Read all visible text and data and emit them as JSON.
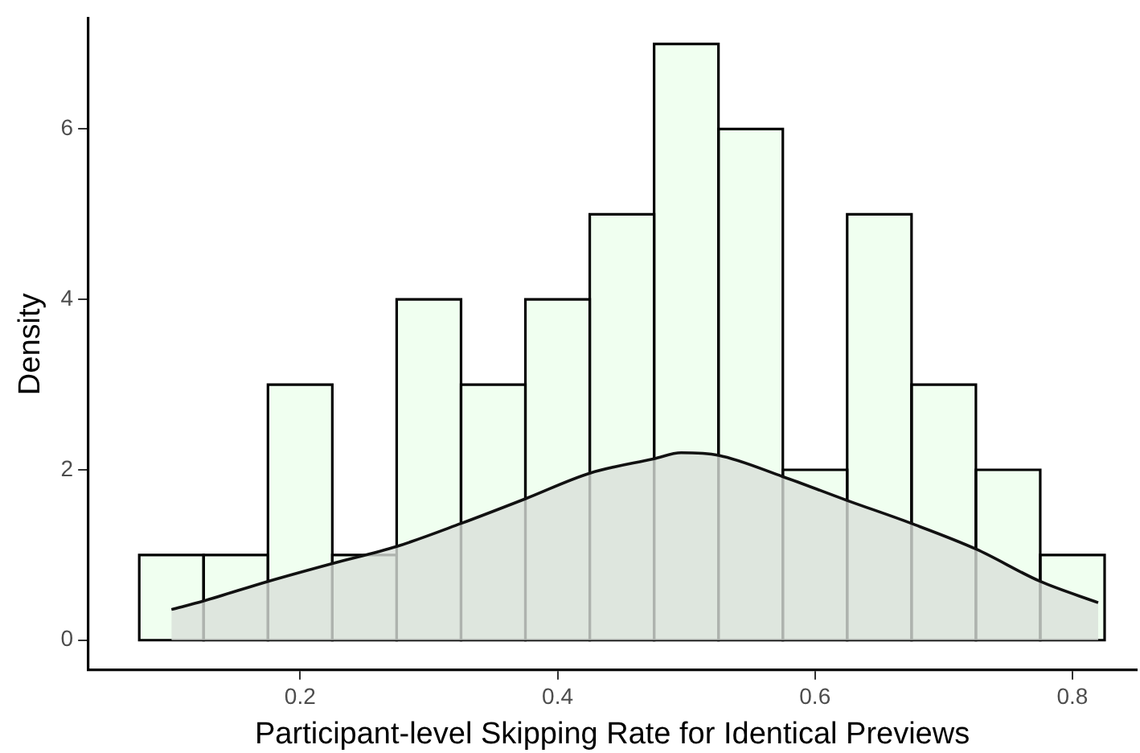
{
  "chart_data": {
    "type": "histogram",
    "xlabel": "Participant-level Skipping Rate for Identical Previews",
    "ylabel": "Density",
    "bins": [
      0.075,
      0.125,
      0.175,
      0.225,
      0.275,
      0.325,
      0.375,
      0.425,
      0.475,
      0.525,
      0.575,
      0.625,
      0.675,
      0.725,
      0.775,
      0.825
    ],
    "values": [
      1,
      1,
      3,
      1,
      4,
      3,
      4,
      5,
      7,
      6,
      2,
      5,
      3,
      2,
      1
    ],
    "color": "#f0fff0",
    "series": [
      {
        "type": "area",
        "color": "#d9e0d9",
        "x": [
          0.1,
          0.125,
          0.175,
          0.225,
          0.275,
          0.325,
          0.375,
          0.425,
          0.475,
          0.496,
          0.525,
          0.575,
          0.625,
          0.675,
          0.725,
          0.775,
          0.82
        ],
        "values": [
          0.36,
          0.46,
          0.69,
          0.9,
          1.1,
          1.37,
          1.66,
          1.96,
          2.13,
          2.2,
          2.17,
          1.92,
          1.64,
          1.37,
          1.07,
          0.69,
          0.44
        ]
      }
    ],
    "xlim": [
      0.035,
      0.85
    ],
    "xticks": [
      0.2,
      0.4,
      0.6,
      0.8
    ],
    "ylim": [
      -0.35,
      7.3
    ],
    "yticks": [
      0,
      2,
      4,
      6
    ],
    "grid": false,
    "legend": false
  }
}
